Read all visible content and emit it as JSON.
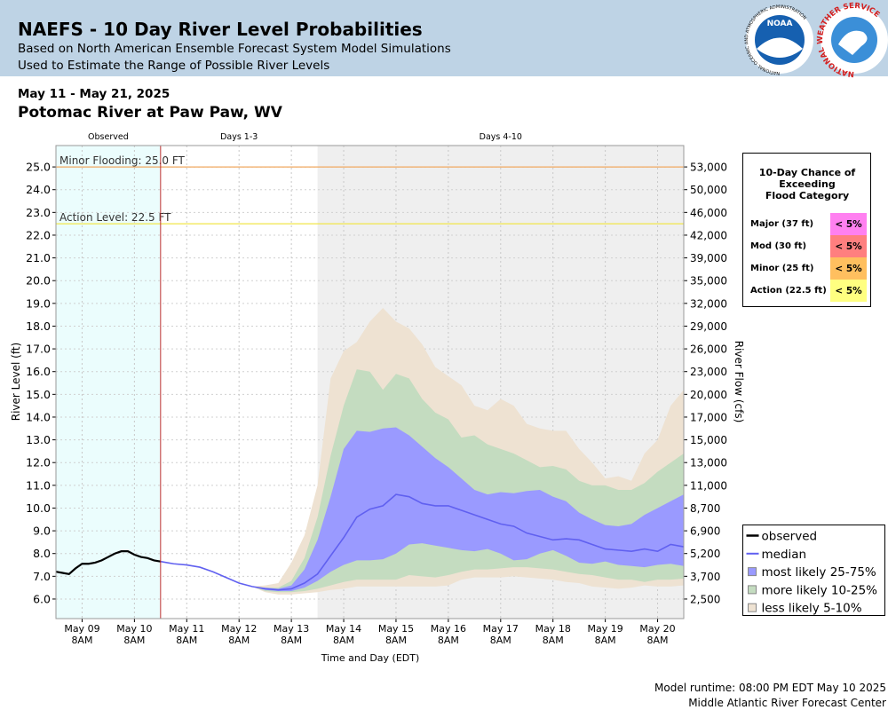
{
  "header": {
    "title": "NAEFS - 10 Day River Level Probabilities",
    "subtitle": "Based on North American Ensemble Forecast System Model Simulations",
    "subtitle2": "Used to Estimate the Range of Possible River Levels",
    "noaa_logo": "NOAA",
    "noaa_ring": "NATIONAL OCEANIC AND ATMOSPHERIC ADMINISTRATION",
    "nws_ring": "NATIONAL WEATHER SERVICE"
  },
  "chart_data": {
    "type": "line",
    "subtitle": "May 11 - May 21, 2025",
    "title": "Potomac River at Paw Paw, WV",
    "xlabel": "Time and Day (EDT)",
    "ylabel": "River Level (ft)",
    "y2label": "River Flow (cfs)",
    "grid": true,
    "legend": "right",
    "xlim": [
      "2025-05-08T20:00",
      "2025-05-20T20:00"
    ],
    "xticks": [
      {
        "value": "2025-05-09T08:00",
        "label": "May 09\n8AM"
      },
      {
        "value": "2025-05-10T08:00",
        "label": "May 10\n8AM"
      },
      {
        "value": "2025-05-11T08:00",
        "label": "May 11\n8AM"
      },
      {
        "value": "2025-05-12T08:00",
        "label": "May 12\n8AM"
      },
      {
        "value": "2025-05-13T08:00",
        "label": "May 13\n8AM"
      },
      {
        "value": "2025-05-14T08:00",
        "label": "May 14\n8AM"
      },
      {
        "value": "2025-05-15T08:00",
        "label": "May 15\n8AM"
      },
      {
        "value": "2025-05-16T08:00",
        "label": "May 16\n8AM"
      },
      {
        "value": "2025-05-17T08:00",
        "label": "May 17\n8AM"
      },
      {
        "value": "2025-05-18T08:00",
        "label": "May 18\n8AM"
      },
      {
        "value": "2025-05-19T08:00",
        "label": "May 19\n8AM"
      },
      {
        "value": "2025-05-20T08:00",
        "label": "May 20\n8AM"
      }
    ],
    "ylim": [
      5.14,
      25.94
    ],
    "yticks": [
      {
        "value": 6,
        "label": "6.0"
      },
      {
        "value": 7,
        "label": "7.0"
      },
      {
        "value": 8,
        "label": "8.0"
      },
      {
        "value": 9,
        "label": "9.0"
      },
      {
        "value": 10,
        "label": "10.0"
      },
      {
        "value": 11,
        "label": "11.0"
      },
      {
        "value": 12,
        "label": "12.0"
      },
      {
        "value": 13,
        "label": "13.0"
      },
      {
        "value": 14,
        "label": "14.0"
      },
      {
        "value": 15,
        "label": "15.0"
      },
      {
        "value": 16,
        "label": "16.0"
      },
      {
        "value": 17,
        "label": "17.0"
      },
      {
        "value": 18,
        "label": "18.0"
      },
      {
        "value": 19,
        "label": "19.0"
      },
      {
        "value": 20,
        "label": "20.0"
      },
      {
        "value": 21,
        "label": "21.0"
      },
      {
        "value": 22,
        "label": "22.0"
      },
      {
        "value": 23,
        "label": "23.0"
      },
      {
        "value": 24,
        "label": "24.0"
      },
      {
        "value": 25,
        "label": "25.0"
      }
    ],
    "y2ticks": [
      {
        "value": 2500,
        "label": "2,500"
      },
      {
        "value": 3700,
        "label": "3,700"
      },
      {
        "value": 5200,
        "label": "5,200"
      },
      {
        "value": 6900,
        "label": "6,900"
      },
      {
        "value": 8700,
        "label": "8,700"
      },
      {
        "value": 11000,
        "label": "11,000"
      },
      {
        "value": 13000,
        "label": "13,000"
      },
      {
        "value": 15000,
        "label": "15,000"
      },
      {
        "value": 17000,
        "label": "17,000"
      },
      {
        "value": 20000,
        "label": "20,000"
      },
      {
        "value": 23000,
        "label": "23,000"
      },
      {
        "value": 26000,
        "label": "26,000"
      },
      {
        "value": 29000,
        "label": "29,000"
      },
      {
        "value": 32000,
        "label": "32,000"
      },
      {
        "value": 35000,
        "label": "35,000"
      },
      {
        "value": 39000,
        "label": "39,000"
      },
      {
        "value": 42000,
        "label": "42,000"
      },
      {
        "value": 46000,
        "label": "46,000"
      },
      {
        "value": 50000,
        "label": "50,000"
      },
      {
        "value": 53000,
        "label": "53,000"
      }
    ],
    "periods": [
      {
        "label": "Observed",
        "start": "2025-05-08T20:00",
        "end": "2025-05-10T20:00",
        "color": "#ebfdfd"
      },
      {
        "label": "Days 1-3",
        "start": "2025-05-10T20:00",
        "end": "2025-05-13T20:00",
        "color": "#ffffff"
      },
      {
        "label": "Days 4-10",
        "start": "2025-05-13T20:00",
        "end": "2025-05-20T20:00",
        "color": "#efefef"
      }
    ],
    "thresholds": [
      {
        "label": "Minor Flooding: 25.0 FT",
        "value": 25.0,
        "color": "#f0a860"
      },
      {
        "label": "Action Level: 22.5 FT",
        "value": 22.5,
        "color": "#f2e64a"
      }
    ],
    "x": [
      "2025-05-10T20:00",
      "2025-05-11T02:00",
      "2025-05-11T08:00",
      "2025-05-11T14:00",
      "2025-05-11T20:00",
      "2025-05-12T02:00",
      "2025-05-12T08:00",
      "2025-05-12T14:00",
      "2025-05-12T20:00",
      "2025-05-13T02:00",
      "2025-05-13T08:00",
      "2025-05-13T14:00",
      "2025-05-13T20:00",
      "2025-05-14T02:00",
      "2025-05-14T08:00",
      "2025-05-14T14:00",
      "2025-05-14T20:00",
      "2025-05-15T02:00",
      "2025-05-15T08:00",
      "2025-05-15T14:00",
      "2025-05-15T20:00",
      "2025-05-16T02:00",
      "2025-05-16T08:00",
      "2025-05-16T14:00",
      "2025-05-16T20:00",
      "2025-05-17T02:00",
      "2025-05-17T08:00",
      "2025-05-17T14:00",
      "2025-05-17T20:00",
      "2025-05-18T02:00",
      "2025-05-18T08:00",
      "2025-05-18T14:00",
      "2025-05-18T20:00",
      "2025-05-19T02:00",
      "2025-05-19T08:00",
      "2025-05-19T14:00",
      "2025-05-19T20:00",
      "2025-05-20T02:00",
      "2025-05-20T08:00",
      "2025-05-20T14:00",
      "2025-05-20T20:00"
    ],
    "series": [
      {
        "name": "observed",
        "color": "#000000",
        "x": [
          "2025-05-08T20:00",
          "2025-05-08T23:00",
          "2025-05-09T02:00",
          "2025-05-09T05:00",
          "2025-05-09T08:00",
          "2025-05-09T11:00",
          "2025-05-09T14:00",
          "2025-05-09T17:00",
          "2025-05-09T20:00",
          "2025-05-09T23:00",
          "2025-05-10T02:00",
          "2025-05-10T05:00",
          "2025-05-10T08:00",
          "2025-05-10T11:00",
          "2025-05-10T14:00",
          "2025-05-10T17:00",
          "2025-05-10T20:00"
        ],
        "values": [
          7.2,
          7.15,
          7.1,
          7.35,
          7.55,
          7.55,
          7.6,
          7.7,
          7.85,
          8.0,
          8.1,
          8.1,
          7.95,
          7.85,
          7.8,
          7.7,
          7.65
        ]
      },
      {
        "name": "median",
        "color": "#6060f0",
        "values": [
          7.65,
          7.55,
          7.5,
          7.4,
          7.2,
          6.95,
          6.7,
          6.55,
          6.45,
          6.4,
          6.45,
          6.7,
          7.1,
          7.9,
          8.7,
          9.6,
          9.95,
          10.1,
          10.6,
          10.5,
          10.2,
          10.1,
          10.1,
          9.9,
          9.7,
          9.5,
          9.3,
          9.2,
          8.9,
          8.75,
          8.6,
          8.65,
          8.6,
          8.4,
          8.2,
          8.15,
          8.1,
          8.2,
          8.1,
          8.4,
          8.3
        ]
      },
      {
        "name": "most likely 25-75%",
        "color": "#9a9aff",
        "upper": [
          7.65,
          7.55,
          7.5,
          7.4,
          7.2,
          6.95,
          6.7,
          6.55,
          6.5,
          6.45,
          6.6,
          7.3,
          8.6,
          10.5,
          12.6,
          13.4,
          13.35,
          13.5,
          13.55,
          13.2,
          12.7,
          12.2,
          11.8,
          11.3,
          10.8,
          10.6,
          10.7,
          10.65,
          10.75,
          10.8,
          10.5,
          10.3,
          9.8,
          9.5,
          9.25,
          9.2,
          9.3,
          9.7,
          10.0,
          10.3,
          10.6
        ],
        "lower": [
          7.65,
          7.55,
          7.5,
          7.4,
          7.2,
          6.95,
          6.7,
          6.55,
          6.4,
          6.35,
          6.35,
          6.5,
          6.8,
          7.2,
          7.5,
          7.7,
          7.7,
          7.75,
          8.0,
          8.4,
          8.45,
          8.35,
          8.25,
          8.15,
          8.1,
          8.2,
          8.0,
          7.7,
          7.75,
          8.0,
          8.15,
          7.9,
          7.6,
          7.55,
          7.65,
          7.5,
          7.45,
          7.4,
          7.5,
          7.55,
          7.45
        ]
      },
      {
        "name": "more likely 10-25%",
        "color": "#c4dcc0",
        "upper": [
          7.65,
          7.55,
          7.5,
          7.4,
          7.2,
          6.95,
          6.7,
          6.55,
          6.5,
          6.5,
          6.8,
          7.8,
          9.6,
          12.3,
          14.5,
          16.1,
          16.0,
          15.2,
          15.9,
          15.7,
          14.8,
          14.2,
          13.9,
          13.1,
          13.2,
          12.8,
          12.6,
          12.4,
          12.1,
          11.8,
          11.85,
          11.7,
          11.2,
          11.0,
          11.0,
          10.8,
          10.8,
          11.1,
          11.6,
          12.0,
          12.4
        ],
        "lower": [
          7.65,
          7.55,
          7.5,
          7.4,
          7.2,
          6.95,
          6.7,
          6.55,
          6.35,
          6.3,
          6.3,
          6.35,
          6.45,
          6.6,
          6.75,
          6.85,
          6.85,
          6.85,
          6.85,
          7.05,
          7.0,
          6.95,
          7.05,
          7.2,
          7.3,
          7.3,
          7.35,
          7.4,
          7.4,
          7.35,
          7.3,
          7.2,
          7.1,
          7.05,
          6.95,
          6.85,
          6.85,
          6.75,
          6.85,
          6.85,
          6.9
        ]
      },
      {
        "name": "less likely 5-10%",
        "color": "#eee2d2",
        "upper": [
          7.65,
          7.55,
          7.5,
          7.4,
          7.2,
          6.95,
          6.7,
          6.55,
          6.6,
          6.7,
          7.6,
          8.8,
          11.0,
          15.7,
          16.9,
          17.3,
          18.2,
          18.8,
          18.2,
          17.9,
          17.2,
          16.2,
          15.8,
          15.4,
          14.5,
          14.3,
          14.8,
          14.5,
          13.7,
          13.5,
          13.4,
          13.4,
          12.6,
          12.0,
          11.3,
          11.4,
          11.2,
          12.4,
          13.0,
          14.5,
          15.2
        ],
        "lower": [
          7.65,
          7.55,
          7.5,
          7.4,
          7.2,
          6.95,
          6.7,
          6.55,
          6.3,
          6.2,
          6.2,
          6.25,
          6.3,
          6.4,
          6.45,
          6.55,
          6.55,
          6.55,
          6.55,
          6.55,
          6.55,
          6.55,
          6.6,
          6.85,
          6.95,
          6.95,
          6.95,
          7.0,
          6.95,
          6.9,
          6.85,
          6.75,
          6.7,
          6.55,
          6.5,
          6.45,
          6.5,
          6.6,
          6.55,
          6.55,
          6.6
        ]
      }
    ]
  },
  "flood_table": {
    "title": "10-Day Chance of\nExceeding\nFlood Category",
    "rows": [
      {
        "label": "Major (37 ft)",
        "chance": "< 5%",
        "color": "#ff80f0"
      },
      {
        "label": "Mod (30 ft)",
        "chance": "< 5%",
        "color": "#ff7f7f"
      },
      {
        "label": "Minor (25 ft)",
        "chance": "< 5%",
        "color": "#ffbf5f"
      },
      {
        "label": "Action (22.5 ft)",
        "chance": "< 5%",
        "color": "#ffff80"
      }
    ]
  },
  "footer": {
    "runtime": "Model runtime: 08:00 PM EDT May 10 2025",
    "center": "Middle Atlantic River Forecast Center"
  }
}
